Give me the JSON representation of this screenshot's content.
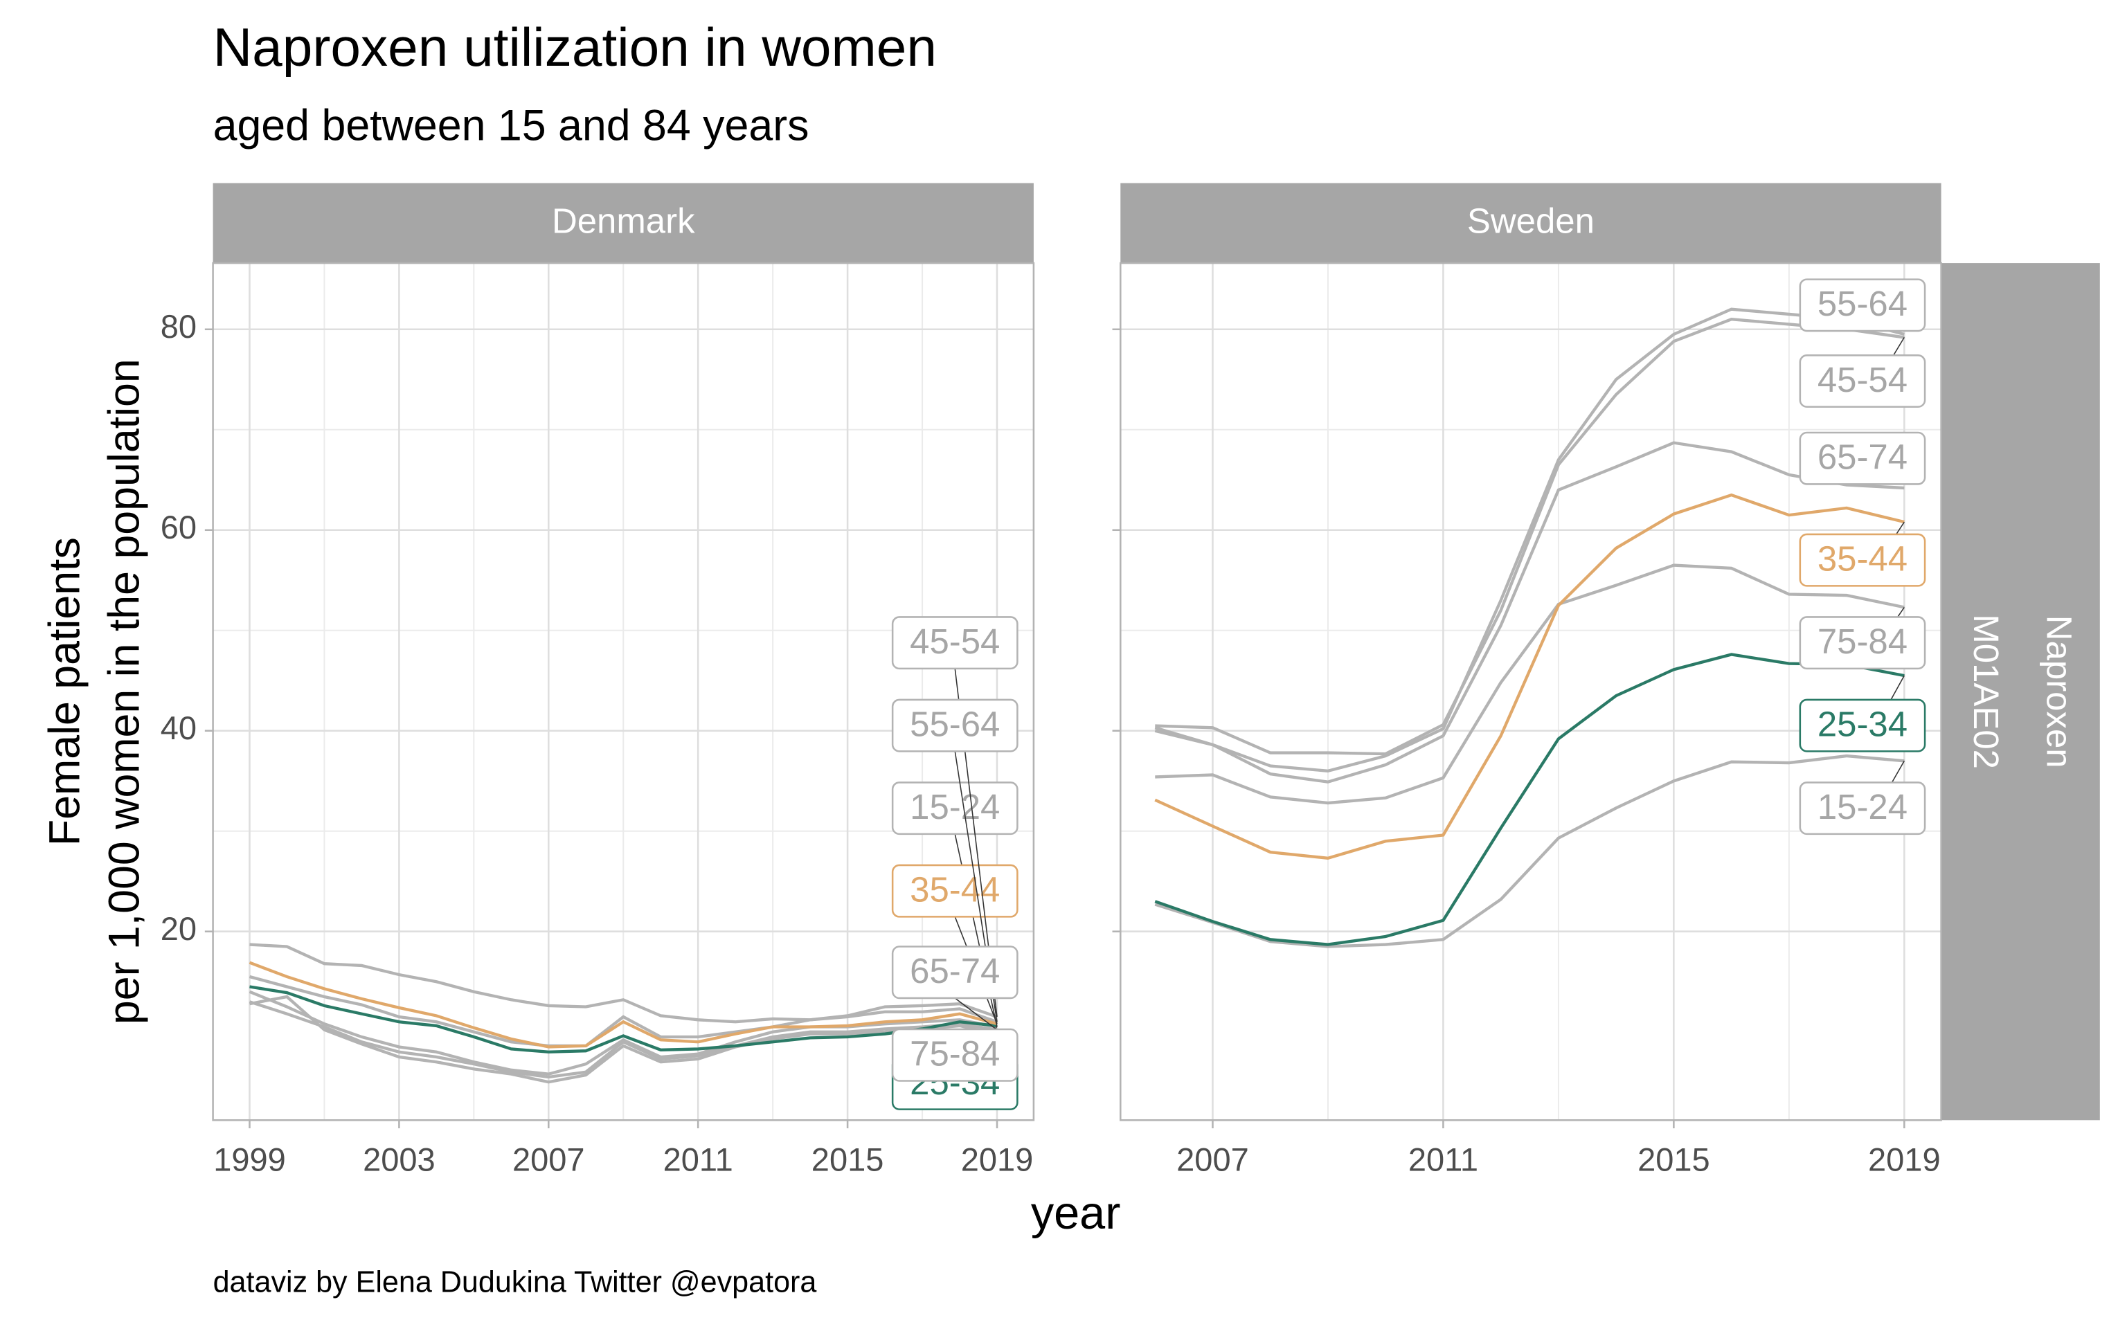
{
  "title": "Naproxen utilization in women",
  "subtitle": "aged between 15 and 84 years",
  "x_label": "year",
  "y_label": [
    "Female patients",
    "per 1,000 women in the population"
  ],
  "row_strip": [
    "Naproxen",
    "M01AE02"
  ],
  "caption": "dataviz by Elena Dudukina Twitter @evpatora",
  "chart_data": [
    {
      "type": "line",
      "facet": "Denmark",
      "x": [
        1999,
        2000,
        2001,
        2002,
        2003,
        2004,
        2005,
        2006,
        2007,
        2008,
        2009,
        2010,
        2011,
        2012,
        2013,
        2014,
        2015,
        2016,
        2017,
        2018,
        2019
      ],
      "xlim": [
        1998.02,
        2019.98
      ],
      "xticks": [
        1999,
        2003,
        2007,
        2011,
        2015,
        2019
      ],
      "ylim": [
        1.2,
        86.6
      ],
      "yticks": [
        20,
        40,
        60,
        80
      ],
      "grid": true,
      "series": [
        {
          "name": "15-24",
          "color": "#b3b3b3",
          "values": [
            14.0,
            12.5,
            10.8,
            9.5,
            8.5,
            8.0,
            7.0,
            6.2,
            5.8,
            6.8,
            9.2,
            7.5,
            7.8,
            9.0,
            10.0,
            10.5,
            10.5,
            10.8,
            11.0,
            11.2,
            10.5
          ]
        },
        {
          "name": "25-34",
          "color": "#2a7a66",
          "values": [
            14.5,
            13.9,
            12.6,
            11.8,
            11.0,
            10.6,
            9.5,
            8.3,
            8.0,
            8.1,
            9.6,
            8.2,
            8.3,
            8.6,
            9.0,
            9.4,
            9.5,
            9.8,
            10.3,
            11.0,
            10.6
          ]
        },
        {
          "name": "35-44",
          "color": "#e0a86a",
          "values": [
            16.9,
            15.5,
            14.3,
            13.3,
            12.4,
            11.6,
            10.4,
            9.3,
            8.5,
            8.6,
            11.0,
            9.2,
            9.0,
            9.8,
            10.5,
            10.5,
            10.6,
            11.0,
            11.2,
            11.8,
            10.8
          ]
        },
        {
          "name": "45-54",
          "color": "#b3b3b3",
          "values": [
            18.7,
            18.5,
            16.8,
            16.6,
            15.7,
            15.0,
            14.0,
            13.2,
            12.6,
            12.5,
            13.2,
            11.6,
            11.2,
            11.0,
            11.3,
            11.2,
            11.6,
            12.5,
            12.6,
            12.8,
            11.5
          ]
        },
        {
          "name": "55-64",
          "color": "#b3b3b3",
          "values": [
            15.5,
            14.5,
            13.5,
            12.7,
            11.5,
            11.0,
            10.0,
            9.0,
            8.6,
            8.6,
            11.5,
            9.5,
            9.5,
            10.0,
            10.5,
            11.2,
            11.5,
            12.0,
            12.0,
            12.3,
            11.0
          ]
        },
        {
          "name": "65-74",
          "color": "#b3b3b3",
          "values": [
            13.0,
            11.8,
            10.5,
            9.0,
            8.0,
            7.5,
            6.8,
            6.0,
            5.5,
            6.0,
            9.0,
            7.3,
            7.6,
            8.6,
            9.5,
            10.0,
            10.0,
            10.3,
            10.5,
            10.8,
            10.2
          ]
        },
        {
          "name": "75-84",
          "color": "#b3b3b3",
          "values": [
            12.8,
            13.5,
            10.2,
            8.8,
            7.5,
            7.0,
            6.3,
            5.8,
            5.0,
            5.7,
            8.6,
            7.0,
            7.3,
            8.5,
            9.3,
            9.8,
            9.8,
            10.0,
            10.3,
            10.6,
            9.8
          ]
        }
      ]
    },
    {
      "type": "line",
      "facet": "Sweden",
      "x": [
        2006,
        2007,
        2008,
        2009,
        2010,
        2011,
        2012,
        2013,
        2014,
        2015,
        2016,
        2017,
        2018,
        2019
      ],
      "xlim": [
        2005.4,
        2019.64
      ],
      "xticks": [
        2007,
        2011,
        2015,
        2019
      ],
      "ylim": [
        1.2,
        86.6
      ],
      "yticks": [
        20,
        40,
        60,
        80
      ],
      "grid": true,
      "series": [
        {
          "name": "15-24",
          "color": "#b3b3b3",
          "values": [
            22.7,
            20.9,
            19.0,
            18.5,
            18.7,
            19.2,
            23.2,
            29.3,
            32.3,
            35.0,
            36.9,
            36.8,
            37.5,
            37.0
          ]
        },
        {
          "name": "25-34",
          "color": "#2a7a66",
          "values": [
            23.0,
            21.0,
            19.2,
            18.7,
            19.5,
            21.1,
            30.3,
            39.2,
            43.5,
            46.1,
            47.6,
            46.7,
            46.6,
            45.5
          ]
        },
        {
          "name": "35-44",
          "color": "#e0a86a",
          "values": [
            33.1,
            30.5,
            27.9,
            27.3,
            29.0,
            29.6,
            39.5,
            52.5,
            58.2,
            61.6,
            63.5,
            61.5,
            62.2,
            60.8
          ]
        },
        {
          "name": "45-54",
          "color": "#b3b3b3",
          "values": [
            40.5,
            40.3,
            37.8,
            37.8,
            37.7,
            40.6,
            52.0,
            66.5,
            73.5,
            78.8,
            81.0,
            80.5,
            80.0,
            79.2
          ]
        },
        {
          "name": "55-64",
          "color": "#b3b3b3",
          "values": [
            40.3,
            38.6,
            36.5,
            36.0,
            37.5,
            40.2,
            53.0,
            67.0,
            75.0,
            79.5,
            82.0,
            81.5,
            81.0,
            79.5
          ]
        },
        {
          "name": "65-74",
          "color": "#b3b3b3",
          "values": [
            40.0,
            38.6,
            35.7,
            34.9,
            36.6,
            39.5,
            50.5,
            64.0,
            66.3,
            68.7,
            67.8,
            65.5,
            64.5,
            64.2
          ]
        },
        {
          "name": "75-84",
          "color": "#b3b3b3",
          "values": [
            35.4,
            35.6,
            33.4,
            32.8,
            33.3,
            35.3,
            44.8,
            52.6,
            54.5,
            56.5,
            56.2,
            53.6,
            53.5,
            52.3
          ]
        }
      ]
    }
  ]
}
